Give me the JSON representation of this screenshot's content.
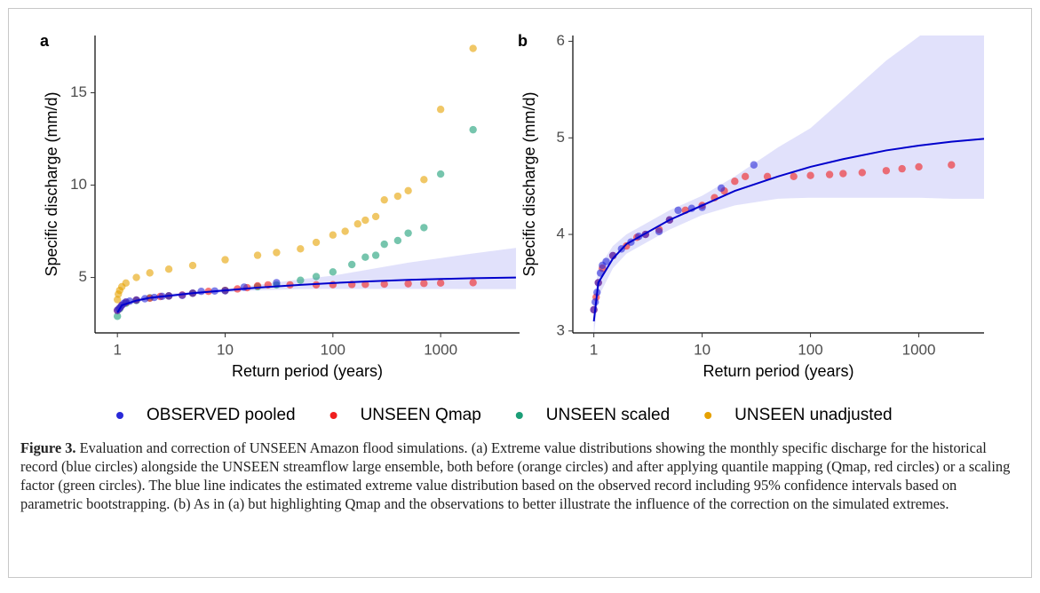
{
  "chart_data": [
    {
      "type": "scatter",
      "panel_label": "a",
      "x_label": "Return period (years)",
      "y_label": "Specific discharge (mm/d)",
      "log_x": true,
      "xlim": [
        0.62,
        5400
      ],
      "xticks": [
        1,
        10,
        100,
        1000
      ],
      "ylim": [
        2,
        18.1
      ],
      "yticks": [
        5,
        10,
        15
      ],
      "series": [
        {
          "name": "OBSERVED pooled",
          "color": "#2a2ad8",
          "x": [
            1.0,
            1.03,
            1.07,
            1.1,
            1.15,
            1.2,
            1.3,
            1.5,
            1.8,
            2.2,
            2.6,
            3,
            4,
            5,
            6,
            8,
            10,
            15,
            30
          ],
          "y": [
            3.22,
            3.3,
            3.4,
            3.5,
            3.6,
            3.68,
            3.72,
            3.78,
            3.85,
            3.92,
            3.98,
            4.0,
            4.03,
            4.15,
            4.25,
            4.27,
            4.28,
            4.48,
            4.72
          ]
        },
        {
          "name": "UNSEEN Qmap",
          "color": "#f01e1e",
          "x": [
            1.0,
            1.05,
            1.1,
            1.2,
            1.5,
            2,
            2.5,
            3,
            4,
            5,
            7,
            10,
            13,
            16,
            20,
            25,
            40,
            70,
            100,
            150,
            200,
            300,
            500,
            700,
            1000,
            2000
          ],
          "y": [
            3.22,
            3.35,
            3.5,
            3.65,
            3.78,
            3.88,
            3.97,
            4.0,
            4.05,
            4.15,
            4.25,
            4.3,
            4.38,
            4.45,
            4.55,
            4.6,
            4.6,
            4.6,
            4.61,
            4.62,
            4.63,
            4.64,
            4.66,
            4.68,
            4.7,
            4.72
          ]
        },
        {
          "name": "UNSEEN scaled",
          "color": "#1b9e77",
          "x": [
            1.0,
            1.05,
            1.2,
            1.5,
            2,
            3,
            5,
            10,
            20,
            30,
            50,
            70,
            100,
            150,
            200,
            250,
            300,
            400,
            500,
            700,
            1000,
            2000
          ],
          "y": [
            2.9,
            3.3,
            3.6,
            3.75,
            3.9,
            4.0,
            4.15,
            4.3,
            4.5,
            4.6,
            4.85,
            5.05,
            5.3,
            5.7,
            6.1,
            6.2,
            6.8,
            7.0,
            7.4,
            7.7,
            10.6,
            13.0
          ]
        },
        {
          "name": "UNSEEN unadjusted",
          "color": "#e6a100",
          "x": [
            1.0,
            1.02,
            1.05,
            1.1,
            1.2,
            1.5,
            2,
            3,
            5,
            10,
            20,
            30,
            50,
            70,
            100,
            130,
            170,
            200,
            250,
            300,
            400,
            500,
            700,
            1000,
            2000
          ],
          "y": [
            3.8,
            4.1,
            4.3,
            4.5,
            4.7,
            5.0,
            5.25,
            5.45,
            5.65,
            5.96,
            6.2,
            6.35,
            6.55,
            6.9,
            7.3,
            7.5,
            7.9,
            8.1,
            8.3,
            9.2,
            9.4,
            9.7,
            10.3,
            14.1,
            17.4
          ]
        }
      ],
      "fit": {
        "color": "#0000cc",
        "band_color": "#dcdcfa",
        "x": [
          1,
          1.1,
          1.5,
          2,
          5,
          10,
          20,
          50,
          100,
          200,
          500,
          1000,
          2000,
          5000
        ],
        "y": [
          3.1,
          3.5,
          3.75,
          3.9,
          4.15,
          4.3,
          4.45,
          4.6,
          4.7,
          4.78,
          4.87,
          4.92,
          4.96,
          5.0
        ],
        "lower": [
          2.95,
          3.35,
          3.65,
          3.8,
          4.05,
          4.2,
          4.3,
          4.37,
          4.38,
          4.38,
          4.38,
          4.38,
          4.37,
          4.37
        ],
        "upper": [
          3.3,
          3.65,
          3.88,
          4.0,
          4.25,
          4.4,
          4.6,
          4.9,
          5.1,
          5.4,
          5.8,
          6.05,
          6.3,
          6.6
        ]
      }
    },
    {
      "type": "scatter",
      "panel_label": "b",
      "x_label": "Return period (years)",
      "y_label": "Specific discharge (mm/d)",
      "log_x": true,
      "xlim": [
        0.64,
        4000
      ],
      "xticks": [
        1,
        10,
        100,
        1000
      ],
      "ylim": [
        2.98,
        6.06
      ],
      "yticks": [
        3,
        4,
        5,
        6
      ],
      "series": [
        {
          "name": "OBSERVED pooled",
          "color": "#2a2ad8",
          "x": [
            1.0,
            1.03,
            1.07,
            1.1,
            1.15,
            1.2,
            1.3,
            1.5,
            1.8,
            2.2,
            2.6,
            3,
            4,
            5,
            6,
            8,
            10,
            15,
            30
          ],
          "y": [
            3.22,
            3.3,
            3.4,
            3.5,
            3.6,
            3.68,
            3.72,
            3.78,
            3.85,
            3.92,
            3.98,
            4.0,
            4.03,
            4.15,
            4.25,
            4.27,
            4.28,
            4.48,
            4.72
          ]
        },
        {
          "name": "UNSEEN Qmap",
          "color": "#f01e1e",
          "x": [
            1.0,
            1.05,
            1.1,
            1.2,
            1.5,
            2,
            2.5,
            3,
            4,
            5,
            7,
            10,
            13,
            16,
            20,
            25,
            40,
            70,
            100,
            150,
            200,
            300,
            500,
            700,
            1000,
            2000
          ],
          "y": [
            3.22,
            3.35,
            3.5,
            3.65,
            3.78,
            3.88,
            3.97,
            4.0,
            4.05,
            4.15,
            4.25,
            4.3,
            4.38,
            4.45,
            4.55,
            4.6,
            4.6,
            4.6,
            4.61,
            4.62,
            4.63,
            4.64,
            4.66,
            4.68,
            4.7,
            4.72
          ]
        }
      ],
      "fit": {
        "color": "#0000cc",
        "band_color": "#dcdcfa",
        "x": [
          1,
          1.1,
          1.5,
          2,
          5,
          10,
          20,
          50,
          100,
          200,
          500,
          1000,
          2000,
          4000
        ],
        "y": [
          3.1,
          3.5,
          3.75,
          3.9,
          4.15,
          4.3,
          4.45,
          4.6,
          4.7,
          4.78,
          4.87,
          4.92,
          4.96,
          4.99
        ],
        "lower": [
          2.95,
          3.35,
          3.65,
          3.8,
          4.05,
          4.2,
          4.3,
          4.37,
          4.38,
          4.38,
          4.38,
          4.38,
          4.37,
          4.37
        ],
        "upper": [
          3.3,
          3.65,
          3.88,
          4.0,
          4.25,
          4.4,
          4.6,
          4.9,
          5.1,
          5.4,
          5.8,
          6.05,
          6.3,
          6.55
        ]
      }
    }
  ],
  "caption": {
    "label": "Figure 3.",
    "text": "Evaluation and correction of UNSEEN Amazon flood simulations. (a) Extreme value distributions showing the monthly specific discharge for the historical record (blue circles) alongside the UNSEEN streamflow large ensemble, both before (orange circles) and after applying quantile mapping (Qmap, red circles) or a scaling factor (green circles). The blue line indicates the estimated extreme value distribution based on the observed record including 95% confidence intervals based on parametric bootstrapping. (b) As in (a) but highlighting Qmap and the observations to better illustrate the influence of the correction on the simulated extremes."
  }
}
